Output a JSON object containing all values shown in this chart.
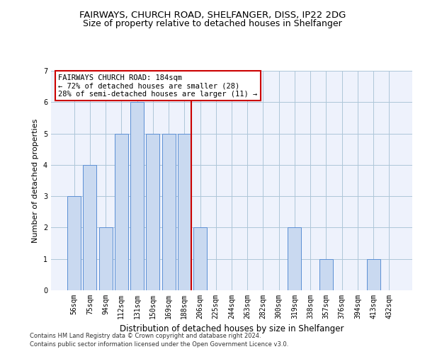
{
  "title": "FAIRWAYS, CHURCH ROAD, SHELFANGER, DISS, IP22 2DG",
  "subtitle": "Size of property relative to detached houses in Shelfanger",
  "xlabel": "Distribution of detached houses by size in Shelfanger",
  "ylabel": "Number of detached properties",
  "categories": [
    "56sqm",
    "75sqm",
    "94sqm",
    "112sqm",
    "131sqm",
    "150sqm",
    "169sqm",
    "188sqm",
    "206sqm",
    "225sqm",
    "244sqm",
    "263sqm",
    "282sqm",
    "300sqm",
    "319sqm",
    "338sqm",
    "357sqm",
    "376sqm",
    "394sqm",
    "413sqm",
    "432sqm"
  ],
  "values": [
    3,
    4,
    2,
    5,
    6,
    5,
    5,
    5,
    2,
    0,
    0,
    0,
    0,
    0,
    2,
    0,
    1,
    0,
    0,
    1,
    0
  ],
  "bar_color": "#c9d9f0",
  "bar_edge_color": "#5b8fd4",
  "subject_line_color": "#cc0000",
  "annotation_text": "FAIRWAYS CHURCH ROAD: 184sqm\n← 72% of detached houses are smaller (28)\n28% of semi-detached houses are larger (11) →",
  "annotation_box_color": "#ffffff",
  "annotation_box_edge_color": "#cc0000",
  "footer_line1": "Contains HM Land Registry data © Crown copyright and database right 2024.",
  "footer_line2": "Contains public sector information licensed under the Open Government Licence v3.0.",
  "ylim": [
    0,
    7
  ],
  "yticks": [
    0,
    1,
    2,
    3,
    4,
    5,
    6,
    7
  ],
  "bg_color": "#eef2fc",
  "fig_bg_color": "#ffffff",
  "title_fontsize": 9.5,
  "subtitle_fontsize": 9,
  "tick_fontsize": 7,
  "ylabel_fontsize": 8,
  "xlabel_fontsize": 8.5,
  "footer_fontsize": 6,
  "annotation_fontsize": 7.5
}
